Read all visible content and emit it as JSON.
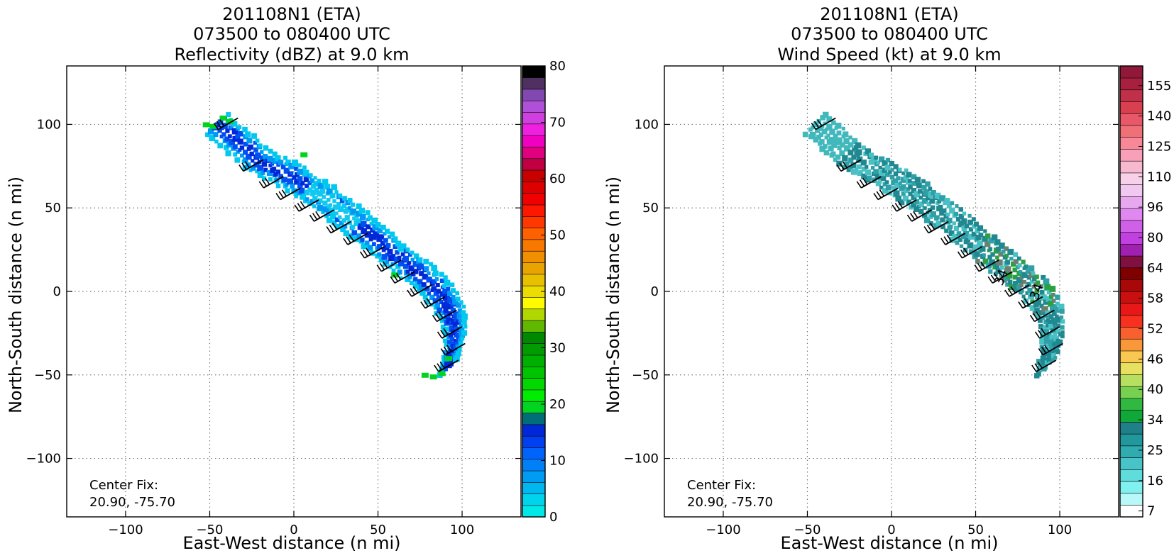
{
  "panels": [
    {
      "title_lines": [
        "201108N1 (ETA)",
        "073500 to 080400 UTC",
        "Reflectivity (dBZ) at 9.0 km"
      ],
      "xlabel": "East-West distance (n mi)",
      "ylabel": "North-South distance (n mi)",
      "center_fix_label": "Center Fix:",
      "center_fix_value": "20.90, -75.70",
      "colorbar": {
        "tick_labels": [
          "0",
          "10",
          "20",
          "30",
          "40",
          "50",
          "60",
          "70",
          "80"
        ],
        "colors": [
          "#00e8e8",
          "#00d4ec",
          "#00b8f0",
          "#009cf4",
          "#0080f8",
          "#0064fc",
          "#0040f0",
          "#0028d8",
          "#006e78",
          "#00d420",
          "#00ec00",
          "#00d800",
          "#00c400",
          "#00b000",
          "#009c00",
          "#008800",
          "#60b800",
          "#b0d800",
          "#fffc00",
          "#ecdc00",
          "#e8c000",
          "#e8a400",
          "#f09000",
          "#f87800",
          "#ff6000",
          "#ff3800",
          "#ff1800",
          "#f00000",
          "#dc0000",
          "#c80000",
          "#c00040",
          "#e00080",
          "#f000c0",
          "#f020e0",
          "#d040e0",
          "#b050d8",
          "#8048b0",
          "#503060",
          "#000000"
        ]
      }
    },
    {
      "title_lines": [
        "201108N1 (ETA)",
        "073500 to 080400 UTC",
        "Wind Speed (kt) at 9.0 km"
      ],
      "xlabel": "East-West distance (n mi)",
      "ylabel": "North-South distance (n mi)",
      "center_fix_label": "Center Fix:",
      "center_fix_value": "20.90, -75.70",
      "contour_labels": [
        "34",
        "34"
      ],
      "colorbar": {
        "tick_labels": [
          "7",
          "16",
          "25",
          "34",
          "40",
          "46",
          "52",
          "58",
          "64",
          "80",
          "96",
          "110",
          "125",
          "140",
          "155"
        ],
        "colors": [
          "#ffffff",
          "#b8f8f8",
          "#80f0f0",
          "#60dcdc",
          "#48c4c8",
          "#30acb0",
          "#20989c",
          "#208088",
          "#10a838",
          "#30b840",
          "#78d050",
          "#b8e060",
          "#e8e060",
          "#f8c850",
          "#f89838",
          "#f86030",
          "#f83020",
          "#e81818",
          "#c81010",
          "#a80808",
          "#800000",
          "#801040",
          "#a020b0",
          "#c040e0",
          "#d060e8",
          "#e088f0",
          "#e8a8f0",
          "#f0c8f0",
          "#f8d0e8",
          "#f8b8d0",
          "#f8a0b8",
          "#f88898",
          "#f07078",
          "#e85868",
          "#d84050",
          "#c03048",
          "#a82040",
          "#901838"
        ]
      }
    }
  ],
  "chart_data": [
    {
      "type": "heatmap",
      "title": "201108N1 (ETA) 073500 to 080400 UTC Reflectivity (dBZ) at 9.0 km",
      "xlabel": "East-West distance (n mi)",
      "ylabel": "North-South distance (n mi)",
      "xlim": [
        -135,
        135
      ],
      "ylim": [
        -135,
        135
      ],
      "xticks": [
        -100,
        -50,
        0,
        50,
        100
      ],
      "yticks": [
        -100,
        -50,
        0,
        50,
        100
      ],
      "grid": true,
      "colorbar_range": [
        0,
        80
      ],
      "colorbar_ticks": [
        0,
        10,
        20,
        30,
        40,
        50,
        60,
        70,
        80
      ],
      "echo_band_centerline": [
        [
          -45,
          100
        ],
        [
          -20,
          78
        ],
        [
          0,
          68
        ],
        [
          15,
          58
        ],
        [
          30,
          47
        ],
        [
          45,
          35
        ],
        [
          60,
          22
        ],
        [
          75,
          10
        ],
        [
          88,
          -2
        ],
        [
          95,
          -15
        ],
        [
          96,
          -30
        ],
        [
          92,
          -45
        ]
      ],
      "wind_barb_locations": [
        [
          -45,
          97
        ],
        [
          -30,
          72
        ],
        [
          -18,
          62
        ],
        [
          -8,
          55
        ],
        [
          3,
          48
        ],
        [
          12,
          42
        ],
        [
          22,
          35
        ],
        [
          32,
          28
        ],
        [
          42,
          20
        ],
        [
          52,
          12
        ],
        [
          60,
          5
        ],
        [
          70,
          -3
        ],
        [
          78,
          -10
        ],
        [
          85,
          -18
        ],
        [
          88,
          -28
        ],
        [
          90,
          -38
        ],
        [
          86,
          -48
        ]
      ]
    },
    {
      "type": "heatmap",
      "title": "201108N1 (ETA) 073500 to 080400 UTC Wind Speed (kt) at 9.0 km",
      "xlabel": "East-West distance (n mi)",
      "ylabel": "North-South distance (n mi)",
      "xlim": [
        -135,
        135
      ],
      "ylim": [
        -135,
        135
      ],
      "xticks": [
        -100,
        -50,
        0,
        50,
        100
      ],
      "yticks": [
        -100,
        -50,
        0,
        50,
        100
      ],
      "grid": true,
      "colorbar_ticks": [
        7,
        16,
        25,
        34,
        40,
        46,
        52,
        58,
        64,
        80,
        96,
        110,
        125,
        140,
        155
      ],
      "contour_label_value": 34,
      "echo_band_centerline": [
        [
          -45,
          100
        ],
        [
          -20,
          78
        ],
        [
          0,
          68
        ],
        [
          15,
          58
        ],
        [
          30,
          47
        ],
        [
          45,
          35
        ],
        [
          60,
          22
        ],
        [
          75,
          10
        ],
        [
          88,
          -2
        ],
        [
          95,
          -15
        ],
        [
          96,
          -30
        ],
        [
          92,
          -45
        ]
      ],
      "wind_barb_locations": [
        [
          -45,
          97
        ],
        [
          -30,
          72
        ],
        [
          -18,
          62
        ],
        [
          -8,
          55
        ],
        [
          3,
          48
        ],
        [
          12,
          42
        ],
        [
          22,
          35
        ],
        [
          32,
          28
        ],
        [
          42,
          20
        ],
        [
          52,
          12
        ],
        [
          60,
          5
        ],
        [
          70,
          -3
        ],
        [
          78,
          -10
        ],
        [
          85,
          -18
        ],
        [
          88,
          -28
        ],
        [
          90,
          -38
        ],
        [
          86,
          -48
        ]
      ]
    }
  ]
}
